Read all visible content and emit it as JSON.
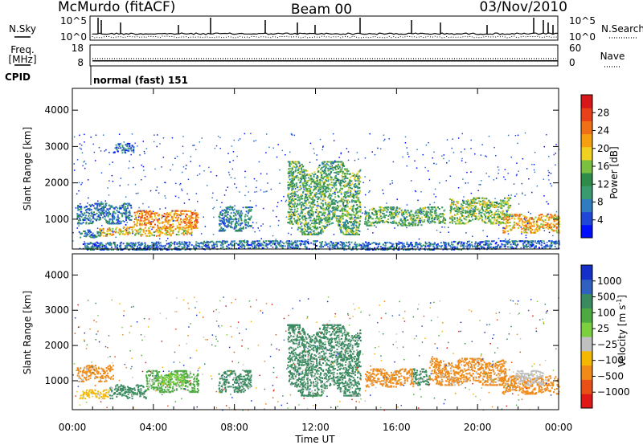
{
  "header": {
    "station": "McMurdo (fitACF)",
    "beam": "Beam 00",
    "date": "03/Nov/2010"
  },
  "summary": {
    "nsky_label": "N.Sky",
    "nsearch_label": "N.Search",
    "freq_label_1": "Freq.",
    "freq_label_2": "[MHz]",
    "nave_label": "Nave",
    "cpid_label": "CPID",
    "cpid_text": "normal (fast) 151",
    "noise_left_ticks": [
      "10^5",
      "10^0"
    ],
    "noise_right_ticks": [
      "10^5",
      "10^0"
    ],
    "freq_ticks": [
      "18",
      "8"
    ],
    "nave_ticks": [
      "60",
      "0"
    ],
    "freq_value_mhz": 11.5,
    "nave_value": 30
  },
  "chart_data": [
    {
      "type": "heatmap",
      "panel": "power",
      "ylabel": "Slant Range [km]",
      "ylim": [
        180,
        4600
      ],
      "yticks": [
        "4000",
        "3000",
        "2000",
        "1000"
      ],
      "xlim_hours": [
        0,
        24
      ],
      "colorbar": {
        "label": "Power [dB]",
        "ticks": [
          "28",
          "24",
          "20",
          "16",
          "12",
          "8",
          "4"
        ],
        "range": [
          0,
          30
        ],
        "colors": [
          "#0010ff",
          "#2048d8",
          "#2f7cc0",
          "#3a9a70",
          "#2e8b4a",
          "#7ac142",
          "#f0d020",
          "#f5a010",
          "#f07018",
          "#e84018",
          "#d81818"
        ]
      },
      "echo_regions": [
        {
          "t0": 0.2,
          "t1": 2.9,
          "r0": 900,
          "r1": 1450,
          "level": 0.25
        },
        {
          "t0": 1.3,
          "t1": 5.9,
          "r0": 560,
          "r1": 800,
          "level": 0.62
        },
        {
          "t0": 3.0,
          "t1": 6.2,
          "r0": 780,
          "r1": 1250,
          "level": 0.72
        },
        {
          "t0": 0.3,
          "t1": 1.4,
          "r0": 520,
          "r1": 720,
          "level": 0.28
        },
        {
          "t0": 7.2,
          "t1": 8.8,
          "r0": 700,
          "r1": 1350,
          "level": 0.28
        },
        {
          "t0": 10.6,
          "t1": 14.2,
          "r0": 600,
          "r1": 2600,
          "level": 0.42
        },
        {
          "t0": 14.4,
          "t1": 18.4,
          "r0": 850,
          "r1": 1350,
          "level": 0.42
        },
        {
          "t0": 18.6,
          "t1": 21.6,
          "r0": 900,
          "r1": 1600,
          "level": 0.48
        },
        {
          "t0": 21.2,
          "t1": 24.0,
          "r0": 650,
          "r1": 1150,
          "level": 0.66
        },
        {
          "t0": 2.0,
          "t1": 3.0,
          "r0": 2850,
          "r1": 3100,
          "level": 0.2
        },
        {
          "t0": 0.5,
          "t1": 24.0,
          "r0": 180,
          "r1": 420,
          "level": 0.22
        }
      ]
    },
    {
      "type": "heatmap",
      "panel": "velocity",
      "ylabel": "Slant Range [km]",
      "ylim": [
        180,
        4600
      ],
      "yticks": [
        "4000",
        "3000",
        "2000",
        "1000"
      ],
      "xlim_hours": [
        0,
        24
      ],
      "xticks": [
        "00:00",
        "04:00",
        "08:00",
        "12:00",
        "16:00",
        "20:00",
        "00:00"
      ],
      "xlabel": "Time UT",
      "colorbar": {
        "label_main": "Velocity",
        "label_unit": "[m s",
        "label_exp": "-1",
        "label_close": "]",
        "ticks": [
          "1000",
          "500",
          "100",
          "25",
          "−25",
          "−100",
          "−500",
          "−1000"
        ],
        "colors": [
          "#1530c8",
          "#3060c0",
          "#3a8a60",
          "#4caa40",
          "#7cd040",
          "#c0c0c0",
          "#f5b800",
          "#f08a18",
          "#e85018",
          "#e01818"
        ]
      },
      "echo_regions": [
        {
          "t0": 0.2,
          "t1": 2.0,
          "r0": 1000,
          "r1": 1450,
          "color": "#f08a18"
        },
        {
          "t0": 0.3,
          "t1": 1.8,
          "r0": 520,
          "r1": 760,
          "color": "#f5b800"
        },
        {
          "t0": 1.8,
          "t1": 3.6,
          "r0": 520,
          "r1": 900,
          "color": "#3a8a60"
        },
        {
          "t0": 3.6,
          "t1": 6.2,
          "r0": 700,
          "r1": 1300,
          "color": "#4caa40"
        },
        {
          "t0": 4.2,
          "t1": 5.5,
          "r0": 900,
          "r1": 1200,
          "color": "#7cd040"
        },
        {
          "t0": 7.2,
          "t1": 8.8,
          "r0": 700,
          "r1": 1300,
          "color": "#3a8a60"
        },
        {
          "t0": 10.6,
          "t1": 14.2,
          "r0": 600,
          "r1": 2600,
          "color": "#3a8a60"
        },
        {
          "t0": 14.4,
          "t1": 16.8,
          "r0": 850,
          "r1": 1350,
          "color": "#f08a18"
        },
        {
          "t0": 16.8,
          "t1": 17.6,
          "r0": 900,
          "r1": 1350,
          "color": "#3a8a60"
        },
        {
          "t0": 17.6,
          "t1": 21.4,
          "r0": 900,
          "r1": 1650,
          "color": "#f08a18"
        },
        {
          "t0": 21.2,
          "t1": 24.0,
          "r0": 650,
          "r1": 1150,
          "color": "#f08a18"
        },
        {
          "t0": 21.8,
          "t1": 23.2,
          "r0": 900,
          "r1": 1300,
          "color": "#c0c0c0"
        }
      ]
    }
  ]
}
